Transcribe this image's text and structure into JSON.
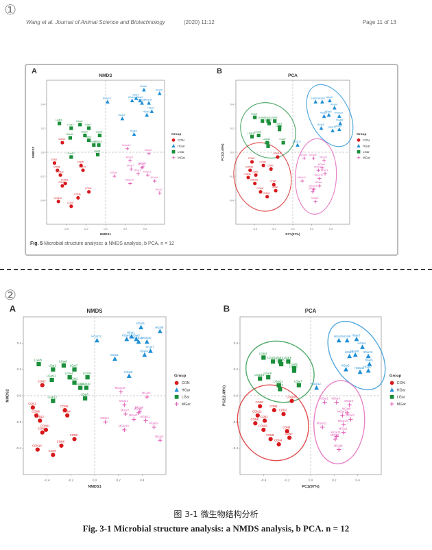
{
  "markers": {
    "one": "①",
    "two": "②"
  },
  "header": {
    "journal": "Wang et al. Journal of Animal Science and Biotechnology",
    "year": "(2020) 11:12",
    "page": "Page 11 of 13"
  },
  "colors": {
    "CON": "#d7191c",
    "HGar": "#1f8fd6",
    "LGar": "#1a8f3a",
    "MGar": "#e05cb6"
  },
  "legend": {
    "title": "Group",
    "items": [
      "CON",
      "HGar",
      "LGar",
      "MGar"
    ]
  },
  "panels": [
    {
      "id": "fig1-nmds",
      "letter": "A",
      "title": "NMDS",
      "xlabel": "NMDS1",
      "ylabel": "NMDS2",
      "xlim": [
        -0.6,
        0.6
      ],
      "ylim": [
        -0.6,
        0.6
      ]
    },
    {
      "id": "fig1-pca",
      "letter": "B",
      "title": "PCA",
      "xlabel": "PC1(97%)",
      "ylabel": "PC2(2.49%)",
      "xlim": [
        -0.6,
        0.6
      ],
      "ylim": [
        -0.6,
        0.6
      ]
    },
    {
      "id": "fig2-nmds",
      "letter": "A",
      "title": "NMDS",
      "xlabel": "NMDS1",
      "ylabel": "NMDS2",
      "xlim": [
        -0.6,
        0.6
      ],
      "ylim": [
        -0.6,
        0.6
      ]
    },
    {
      "id": "fig2-pca",
      "letter": "B",
      "title": "PCA",
      "xlabel": "PC1(97%)",
      "ylabel": "PC2(2.49%)",
      "xlim": [
        -0.6,
        0.6
      ],
      "ylim": [
        -0.6,
        0.6
      ]
    }
  ],
  "captions": {
    "fig1_prefix": "Fig. 5",
    "fig1_text": " Microbial structure analysis: a NMDS analysis, b PCA. n = 12",
    "fig2_zh": "图 3-1  微生物结构分析",
    "fig2_en": "Fig. 3-1 Microbial structure analysis: a NMDS analysis, b PCA. n = 12"
  },
  "chart_data": [
    {
      "type": "scatter",
      "title": "NMDS",
      "xlabel": "NMDS1",
      "ylabel": "NMDS2",
      "xlim": [
        -0.6,
        0.6
      ],
      "ylim": [
        -0.6,
        0.6
      ],
      "grid": false,
      "legend_position": "right",
      "series": [
        {
          "name": "CON",
          "marker": "circle",
          "points": [
            {
              "label": "CON1",
              "x": -0.44,
              "y": -0.28
            },
            {
              "label": "CON2",
              "x": -0.52,
              "y": -0.09
            },
            {
              "label": "CON3",
              "x": -0.44,
              "y": 0.08
            },
            {
              "label": "CON4",
              "x": -0.23,
              "y": -0.15
            },
            {
              "label": "CON5",
              "x": -0.25,
              "y": -0.11
            },
            {
              "label": "CON6",
              "x": -0.28,
              "y": -0.38
            },
            {
              "label": "CON7",
              "x": -0.35,
              "y": -0.45
            },
            {
              "label": "CON8",
              "x": -0.49,
              "y": -0.15
            },
            {
              "label": "CON9",
              "x": -0.17,
              "y": -0.33
            },
            {
              "label": "CON10",
              "x": -0.48,
              "y": -0.41
            },
            {
              "label": "CON11",
              "x": -0.41,
              "y": -0.26
            },
            {
              "label": "CON12",
              "x": -0.46,
              "y": -0.19
            }
          ]
        },
        {
          "name": "HGar",
          "marker": "triangle",
          "points": [
            {
              "label": "HGar1",
              "x": 0.31,
              "y": 0.45
            },
            {
              "label": "HGar2",
              "x": 0.17,
              "y": 0.28
            },
            {
              "label": "HGar3",
              "x": 0.35,
              "y": 0.43
            },
            {
              "label": "HGar4",
              "x": 0.42,
              "y": 0.31
            },
            {
              "label": "HGar5",
              "x": 0.39,
              "y": 0.52
            },
            {
              "label": "HGar6",
              "x": 0.27,
              "y": 0.43
            },
            {
              "label": "HGar7",
              "x": 0.47,
              "y": 0.34
            },
            {
              "label": "HGar8",
              "x": 0.29,
              "y": 0.15
            },
            {
              "label": "HGar9",
              "x": 0.55,
              "y": 0.49
            },
            {
              "label": "HGar10",
              "x": 0.44,
              "y": 0.41
            },
            {
              "label": "HGar11",
              "x": 0.37,
              "y": 0.41
            },
            {
              "label": "HGar12",
              "x": 0.02,
              "y": 0.42
            }
          ]
        },
        {
          "name": "LGar",
          "marker": "square",
          "points": [
            {
              "label": "LGar1",
              "x": -0.17,
              "y": 0.1
            },
            {
              "label": "LGar2",
              "x": -0.35,
              "y": 0.2
            },
            {
              "label": "LGar3",
              "x": -0.12,
              "y": 0.06
            },
            {
              "label": "LGar4",
              "x": -0.21,
              "y": 0.14
            },
            {
              "label": "LGar5",
              "x": -0.47,
              "y": 0.24
            },
            {
              "label": "LGar6",
              "x": -0.08,
              "y": -0.02
            },
            {
              "label": "LGar7",
              "x": -0.17,
              "y": 0.2
            },
            {
              "label": "LGar8",
              "x": -0.26,
              "y": 0.23
            },
            {
              "label": "LGar9",
              "x": -0.06,
              "y": 0.14
            },
            {
              "label": "LGar10",
              "x": -0.07,
              "y": 0.06
            },
            {
              "label": "LGar11",
              "x": -0.36,
              "y": 0.12
            },
            {
              "label": "LGar12",
              "x": -0.35,
              "y": -0.04
            }
          ]
        },
        {
          "name": "MGar",
          "marker": "plus",
          "points": [
            {
              "label": "MGar1",
              "x": 0.25,
              "y": -0.07
            },
            {
              "label": "MGar2",
              "x": 0.55,
              "y": -0.34
            },
            {
              "label": "MGar3",
              "x": 0.33,
              "y": -0.18
            },
            {
              "label": "MGar4",
              "x": 0.09,
              "y": -0.2
            },
            {
              "label": "MGar5",
              "x": 0.37,
              "y": -0.13
            },
            {
              "label": "MGar6",
              "x": 0.44,
              "y": -0.01
            },
            {
              "label": "MGar7",
              "x": 0.26,
              "y": -0.14
            },
            {
              "label": "MGar8",
              "x": 0.38,
              "y": -0.12
            },
            {
              "label": "MGar9",
              "x": 0.5,
              "y": -0.24
            },
            {
              "label": "MGar10",
              "x": 0.25,
              "y": -0.26
            },
            {
              "label": "MGar11",
              "x": 0.43,
              "y": -0.19
            },
            {
              "label": "MGar12",
              "x": 0.22,
              "y": 0.03
            }
          ]
        }
      ]
    },
    {
      "type": "scatter",
      "title": "PCA",
      "xlabel": "PC1(97%)",
      "ylabel": "PC2(2.49%)",
      "xlim": [
        -0.6,
        0.6
      ],
      "ylim": [
        -0.6,
        0.6
      ],
      "grid": false,
      "legend_position": "right",
      "ellipses": true,
      "series": [
        {
          "name": "CON",
          "marker": "circle",
          "points": [
            {
              "label": "CON1",
              "x": -0.39,
              "y": -0.19
            },
            {
              "label": "CON2",
              "x": -0.23,
              "y": -0.14
            },
            {
              "label": "CON3",
              "x": -0.43,
              "y": -0.08
            },
            {
              "label": "CON4",
              "x": -0.27,
              "y": -0.37
            },
            {
              "label": "CON5",
              "x": -0.2,
              "y": -0.27
            },
            {
              "label": "CON6",
              "x": -0.47,
              "y": -0.21
            },
            {
              "label": "CON7",
              "x": -0.18,
              "y": -0.32
            },
            {
              "label": "CON8",
              "x": -0.34,
              "y": -0.33
            },
            {
              "label": "CON9",
              "x": -0.31,
              "y": -0.11
            },
            {
              "label": "CON10",
              "x": -0.16,
              "y": -0.04
            },
            {
              "label": "CON11",
              "x": -0.4,
              "y": -0.26
            },
            {
              "label": "CON12",
              "x": -0.45,
              "y": -0.15
            }
          ]
        },
        {
          "name": "HGar",
          "marker": "triangle",
          "points": [
            {
              "label": "HGar1",
              "x": 0.24,
              "y": 0.42
            },
            {
              "label": "HGar2",
              "x": 0.33,
              "y": 0.3
            },
            {
              "label": "HGar3",
              "x": 0.39,
              "y": 0.43
            },
            {
              "label": "HGar4",
              "x": 0.44,
              "y": 0.37
            },
            {
              "label": "HGar5",
              "x": 0.3,
              "y": 0.2
            },
            {
              "label": "HGar6",
              "x": 0.5,
              "y": 0.24
            },
            {
              "label": "HGar7",
              "x": 0.49,
              "y": 0.19
            },
            {
              "label": "HGar8",
              "x": 0.38,
              "y": 0.31
            },
            {
              "label": "HGar9",
              "x": 0.31,
              "y": 0.42
            },
            {
              "label": "HGar10",
              "x": 0.49,
              "y": 0.3
            },
            {
              "label": "HGar11",
              "x": 0.42,
              "y": 0.18
            },
            {
              "label": "HGar12",
              "x": 0.05,
              "y": 0.06
            }
          ]
        },
        {
          "name": "LGar",
          "marker": "square",
          "points": [
            {
              "label": "LGar1",
              "x": -0.26,
              "y": 0.05
            },
            {
              "label": "LGar2",
              "x": -0.26,
              "y": 0.26
            },
            {
              "label": "LGar3",
              "x": -0.14,
              "y": 0.19
            },
            {
              "label": "LGar4",
              "x": -0.4,
              "y": 0.29
            },
            {
              "label": "LGar5",
              "x": -0.25,
              "y": 0.24
            },
            {
              "label": "LGar6",
              "x": -0.19,
              "y": 0.26
            },
            {
              "label": "LGar7",
              "x": -0.1,
              "y": 0.08
            },
            {
              "label": "LGar8",
              "x": -0.36,
              "y": 0.14
            },
            {
              "label": "LGar9",
              "x": -0.14,
              "y": 0.21
            },
            {
              "label": "LGar10",
              "x": -0.43,
              "y": 0.13
            },
            {
              "label": "LGar11",
              "x": -0.27,
              "y": 0.08
            },
            {
              "label": "LGar12",
              "x": -0.32,
              "y": 0.26
            }
          ]
        },
        {
          "name": "MGar",
          "marker": "plus",
          "points": [
            {
              "label": "MGar1",
              "x": 0.28,
              "y": -0.28
            },
            {
              "label": "MGar2",
              "x": 0.12,
              "y": -0.05
            },
            {
              "label": "MGar3",
              "x": 0.34,
              "y": -0.18
            },
            {
              "label": "MGar4",
              "x": 0.22,
              "y": -0.05
            },
            {
              "label": "MGar5",
              "x": 0.33,
              "y": -0.07
            },
            {
              "label": "MGar6",
              "x": 0.21,
              "y": -0.33
            },
            {
              "label": "MGar7",
              "x": 0.27,
              "y": -0.15
            },
            {
              "label": "MGar8",
              "x": 0.24,
              "y": -0.41
            },
            {
              "label": "MGar9",
              "x": 0.31,
              "y": -0.13
            },
            {
              "label": "MGar10",
              "x": 0.28,
              "y": -0.22
            },
            {
              "label": "MGar11",
              "x": 0.22,
              "y": -0.31
            },
            {
              "label": "MGar12",
              "x": 0.1,
              "y": -0.24
            }
          ]
        }
      ]
    }
  ]
}
